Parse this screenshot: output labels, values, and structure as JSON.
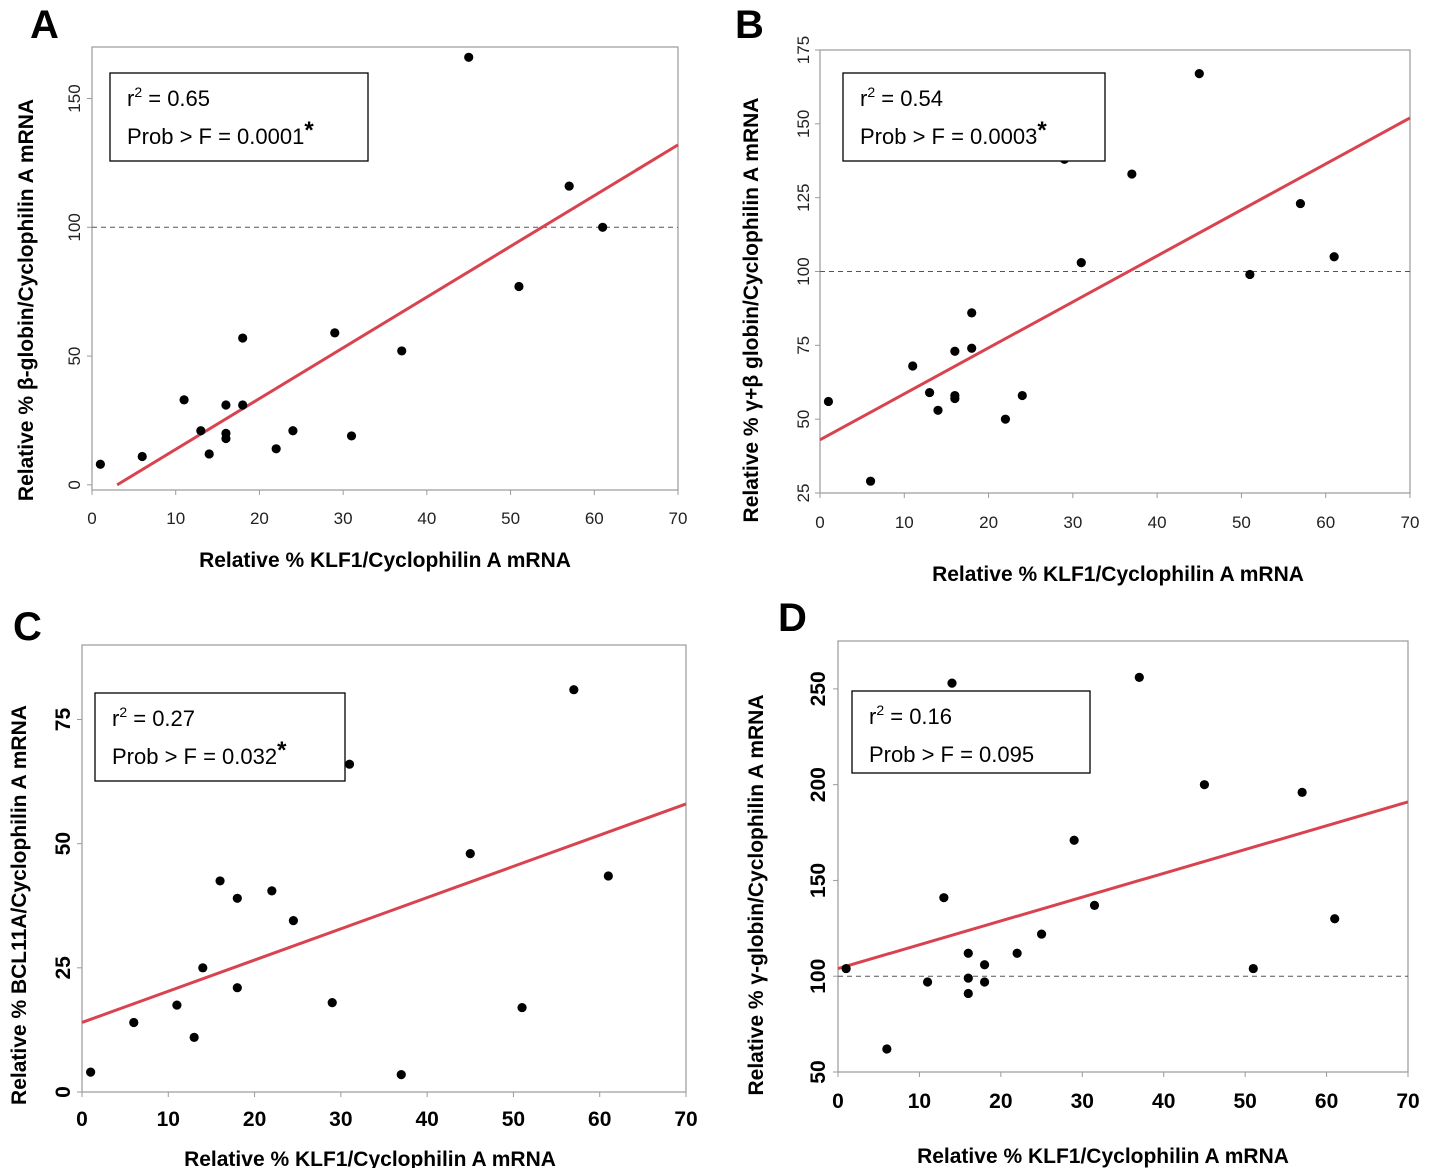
{
  "colors": {
    "fit_line": "#d9434f",
    "points": "#000000",
    "reference_line": "#555555",
    "frame": "#9a9a9a"
  },
  "chart_data": [
    {
      "panel": "A",
      "type": "scatter",
      "xlabel": "Relative % KLF1/Cyclophilin A mRNA",
      "ylabel": "Relative % β-globin/Cyclophilin A mRNA",
      "xlim": [
        0,
        70
      ],
      "ylim": [
        -2,
        170
      ],
      "xticks": [
        0,
        10,
        20,
        30,
        40,
        50,
        60,
        70
      ],
      "yticks": [
        0,
        50,
        100,
        150
      ],
      "reference_y": 100,
      "stats": {
        "r2_prefix": "r",
        "r2_value": " = 0.65",
        "prob": "Prob > F = 0.0001",
        "significant": "*"
      },
      "fit": {
        "x": [
          3,
          70
        ],
        "y": [
          0,
          132
        ]
      },
      "points": [
        [
          1,
          8
        ],
        [
          6,
          11
        ],
        [
          11,
          33
        ],
        [
          13,
          21
        ],
        [
          14,
          12
        ],
        [
          16,
          31
        ],
        [
          16,
          20
        ],
        [
          16,
          18
        ],
        [
          18,
          31
        ],
        [
          18,
          57
        ],
        [
          22,
          14
        ],
        [
          24,
          21
        ],
        [
          29,
          59
        ],
        [
          31,
          19
        ],
        [
          37,
          52
        ],
        [
          45,
          166
        ],
        [
          51,
          77
        ],
        [
          57,
          116
        ],
        [
          61,
          100
        ]
      ]
    },
    {
      "panel": "B",
      "type": "scatter",
      "xlabel": "Relative % KLF1/Cyclophilin A mRNA",
      "ylabel": "Relative % γ+β globin/Cyclophilin A mRNA",
      "xlim": [
        0,
        70
      ],
      "ylim": [
        25,
        175
      ],
      "xticks": [
        0,
        10,
        20,
        30,
        40,
        50,
        60,
        70
      ],
      "yticks": [
        25,
        50,
        75,
        100,
        125,
        150,
        175
      ],
      "reference_y": 100,
      "stats": {
        "r2_prefix": "r",
        "r2_value": " = 0.54",
        "prob": "Prob > F = 0.0003",
        "significant": "*"
      },
      "fit": {
        "x": [
          0,
          70
        ],
        "y": [
          43,
          152
        ]
      },
      "points": [
        [
          1,
          56
        ],
        [
          6,
          29
        ],
        [
          11,
          68
        ],
        [
          13,
          59
        ],
        [
          14,
          53
        ],
        [
          16,
          58
        ],
        [
          16,
          57
        ],
        [
          16,
          73
        ],
        [
          18,
          74
        ],
        [
          18,
          86
        ],
        [
          22,
          50
        ],
        [
          24,
          58
        ],
        [
          29,
          138
        ],
        [
          31,
          103
        ],
        [
          37,
          133
        ],
        [
          45,
          167
        ],
        [
          51,
          99
        ],
        [
          57,
          123
        ],
        [
          61,
          105
        ]
      ]
    },
    {
      "panel": "C",
      "type": "scatter",
      "xlabel": "Relative % KLF1/Cyclophilin A mRNA",
      "ylabel": "Relative % BCL11A/Cyclophilin A mRNA",
      "xlim": [
        0,
        70
      ],
      "ylim": [
        0,
        90
      ],
      "xticks": [
        0,
        10,
        20,
        30,
        40,
        50,
        60,
        70
      ],
      "yticks": [
        0,
        25,
        50,
        75
      ],
      "reference_y": null,
      "stats": {
        "r2_prefix": "r",
        "r2_value": " = 0.27",
        "prob": "Prob > F = 0.032",
        "significant": "*"
      },
      "fit": {
        "x": [
          0,
          70
        ],
        "y": [
          14,
          58
        ]
      },
      "points": [
        [
          1,
          4
        ],
        [
          6,
          14
        ],
        [
          11,
          17.5
        ],
        [
          13,
          11
        ],
        [
          14,
          25
        ],
        [
          16,
          42.5
        ],
        [
          18,
          39
        ],
        [
          18,
          21
        ],
        [
          22,
          40.5
        ],
        [
          24.5,
          34.5
        ],
        [
          29,
          18
        ],
        [
          31,
          66
        ],
        [
          37,
          3.5
        ],
        [
          45,
          48
        ],
        [
          51,
          17
        ],
        [
          57,
          81
        ],
        [
          61,
          43.5
        ]
      ]
    },
    {
      "panel": "D",
      "type": "scatter",
      "xlabel": "Relative % KLF1/Cyclophilin A mRNA",
      "ylabel": "Relative % γ-globin/Cyclophilin A mRNA",
      "xlim": [
        0,
        70
      ],
      "ylim": [
        50,
        275
      ],
      "xticks": [
        0,
        10,
        20,
        30,
        40,
        50,
        60,
        70
      ],
      "yticks": [
        50,
        100,
        150,
        200,
        250
      ],
      "reference_y": 100,
      "stats": {
        "r2_prefix": "r",
        "r2_value": " = 0.16",
        "prob": "Prob > F = 0.095",
        "significant": ""
      },
      "fit": {
        "x": [
          0,
          70
        ],
        "y": [
          104,
          191
        ]
      },
      "points": [
        [
          1,
          104
        ],
        [
          6,
          62
        ],
        [
          11,
          97
        ],
        [
          13,
          141
        ],
        [
          14,
          253
        ],
        [
          16,
          112
        ],
        [
          16,
          99
        ],
        [
          16,
          91
        ],
        [
          18,
          106
        ],
        [
          18,
          97
        ],
        [
          22,
          112
        ],
        [
          25,
          122
        ],
        [
          29,
          171
        ],
        [
          31.5,
          137
        ],
        [
          37,
          256
        ],
        [
          45,
          200
        ],
        [
          51,
          104
        ],
        [
          57,
          196
        ],
        [
          61,
          130
        ]
      ]
    }
  ]
}
